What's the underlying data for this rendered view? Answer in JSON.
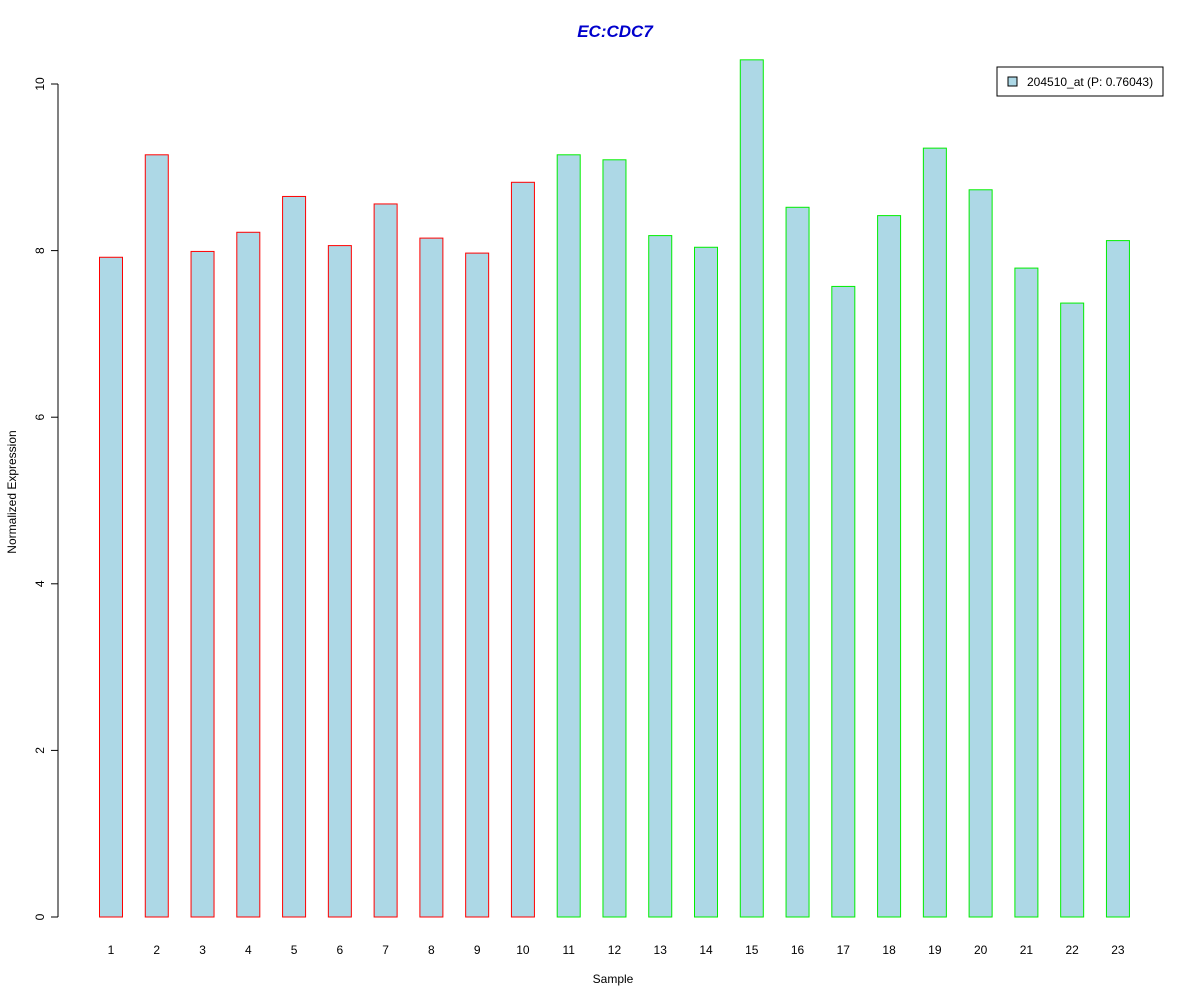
{
  "chart_data": {
    "type": "bar",
    "title": "EC:CDC7",
    "xlabel": "Sample",
    "ylabel": "Normalized Expression",
    "ylim": [
      0,
      10
    ],
    "yticks": [
      0,
      2,
      4,
      6,
      8,
      10
    ],
    "grid": false,
    "categories": [
      "1",
      "2",
      "3",
      "4",
      "5",
      "6",
      "7",
      "8",
      "9",
      "10",
      "11",
      "12",
      "13",
      "14",
      "15",
      "16",
      "17",
      "18",
      "19",
      "20",
      "21",
      "22",
      "23"
    ],
    "series": [
      {
        "name": "204510_at (P: 0.76043)",
        "values": [
          7.92,
          9.15,
          7.99,
          8.22,
          8.65,
          8.06,
          8.56,
          8.15,
          7.97,
          8.82,
          9.15,
          9.09,
          8.18,
          8.04,
          10.29,
          8.52,
          7.57,
          8.42,
          9.23,
          8.73,
          7.79,
          7.37,
          8.12
        ],
        "fill": "#add8e6",
        "groups": [
          "red",
          "red",
          "red",
          "red",
          "red",
          "red",
          "red",
          "red",
          "red",
          "red",
          "green",
          "green",
          "green",
          "green",
          "green",
          "green",
          "green",
          "green",
          "green",
          "green",
          "green",
          "green",
          "green"
        ]
      }
    ],
    "legend_position": "top-right",
    "colors": {
      "title": "#0000cc",
      "bar_fill": "#add8e6",
      "group_red": "#ff0000",
      "group_green": "#00ee00",
      "axis": "#000000"
    }
  }
}
